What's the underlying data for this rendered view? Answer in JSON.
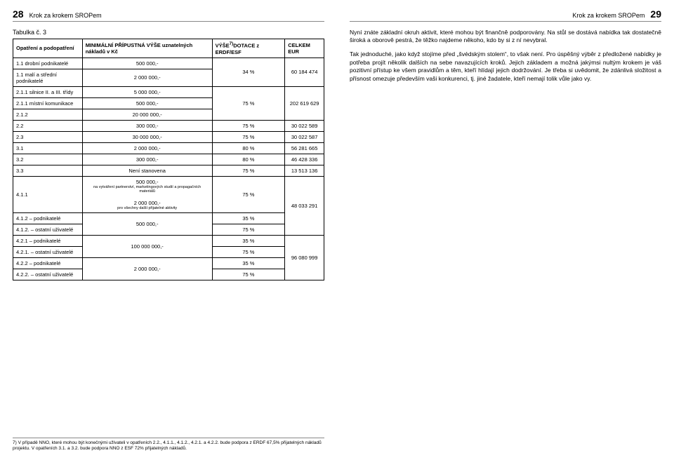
{
  "header": {
    "running_title": "Krok za krokem SROPem",
    "left_num": "28",
    "right_num": "29"
  },
  "table": {
    "label": "Tabulka č. 3",
    "head": {
      "c1": "Opatření a podopatření",
      "c2": "MINIMÁLNÍ PŘÍPUSTNÁ VÝŠE uznatelných nákladů v Kč",
      "c3_a": "VÝŠE",
      "c3_sup": "7)",
      "c3_b": "DOTACE z ERDF/ESF",
      "c4": "CELKEM EUR"
    },
    "rows": {
      "r0": {
        "c1": "1.1 drobní podnikatelé",
        "c2": "500 000,-",
        "c3": "34 %",
        "c4": "60 184 474"
      },
      "r1": {
        "c1": "1.1 malí a střední podnikatelé",
        "c2": "2 000 000,-"
      },
      "r2": {
        "c1": "2.1.1 silnice II. a III. třídy",
        "c2": "5 000 000,-"
      },
      "r3": {
        "c1": "2.1.1 místní komunikace",
        "c2": "500 000,-",
        "c3": "75 %",
        "c4": "202 619 629"
      },
      "r4": {
        "c1": "2.1.2",
        "c2": "20 000 000,-"
      },
      "r5": {
        "c1": "2.2",
        "c2": "300 000,-",
        "c3": "75 %",
        "c4": "30 022 589"
      },
      "r6": {
        "c1": "2.3",
        "c2": "30 000 000,-",
        "c3": "75 %",
        "c4": "30 022 587"
      },
      "r7": {
        "c1": "3.1",
        "c2": "2 000 000,-",
        "c3": "80 %",
        "c4": "56 281 665"
      },
      "r8": {
        "c1": "3.2",
        "c2": "300 000,-",
        "c3": "80 %",
        "c4": "46 428 336"
      },
      "r9": {
        "c1": "3.3",
        "c2": "Není stanovena",
        "c3": "75 %",
        "c4": "13 513 136"
      },
      "r10": {
        "c1": "4.1.1",
        "c2a": "500 000,-",
        "c2a_note": "na vytváření partnerství, marketingových studií a propagačních materiálů",
        "c2b": "2 000 000,-",
        "c2b_note": "pro všechny další přijatelné aktivity",
        "c3": "75 %"
      },
      "r11": {
        "c1": "4.1.2 – podnikatelé",
        "c2": "500 000,-",
        "c3": "35 %",
        "c4": "48 033 291"
      },
      "r12": {
        "c1": "4.1.2. – ostatní uživatelé",
        "c3": "75 %"
      },
      "r13": {
        "c1": "4.2.1 – podnikatelé",
        "c2": "100 000 000,-",
        "c3": "35 %"
      },
      "r14": {
        "c1": "4.2.1. – ostatní uživatelé",
        "c3": "75 %",
        "c4": "96 080 999"
      },
      "r15": {
        "c1": "4.2.2 – podnikatelé",
        "c2": "2 000 000,-",
        "c3": "35 %"
      },
      "r16": {
        "c1": "4.2.2. – ostatní uživatelé",
        "c3": "75 %"
      }
    }
  },
  "paragraphs": {
    "p1": "Nyní znáte základní okruh aktivit, které mohou být finančně podporovány. Na stůl se dostává nabídka tak dostatečně široká a oborově pestrá, že těžko najdeme někoho, kdo by si z ní nevybral.",
    "p2": "Tak jednoduché, jako když stojíme před „švédským stolem“, to však není. Pro úspěšný výběr z předložené nabídky je potřeba projít několik dalších na sebe navazujících kroků. Jejich základem a možná jakýmsi nultým krokem je váš pozitivní přístup ke všem pravidlům a těm, kteří hlídají jejich dodržování. Je třeba si uvědomit, že zdánlivá složitost a přísnost omezuje především vaši konkurenci, tj. jiné žadatele, kteří nemají tolik vůle jako vy."
  },
  "footnote": "7) V případě NNO, které mohou být konečnými uživateli v opatřeních 2.2., 4.1.1., 4.1.2., 4.2.1. a 4.2.2. bude podpora z ERDF 67,5% přijatelných nákladů projektu. V opatřeních 3.1. a 3.2. bude podpora NNO z ESF 72% přijatelných nákladů."
}
